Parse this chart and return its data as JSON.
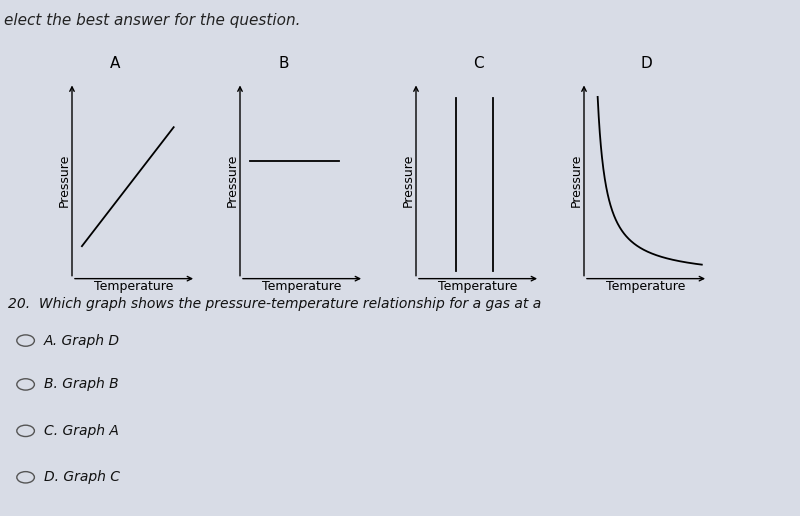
{
  "background_color": "#d8dce6",
  "title_text": "elect the best answer for the question.",
  "question_text": "20.  Which graph shows the pressure-temperature relationship for a gas at a",
  "graph_labels": [
    "A",
    "B",
    "C",
    "D"
  ],
  "ylabel": "Pressure",
  "xlabel": "Temperature",
  "options": [
    "A. Graph D",
    "B. Graph B",
    "C. Graph A",
    "D. Graph C"
  ],
  "line_color": "#000000",
  "axis_color": "#000000",
  "title_fontsize": 11,
  "label_fontsize": 9,
  "graph_label_fontsize": 11,
  "option_fontsize": 10,
  "question_fontsize": 10
}
